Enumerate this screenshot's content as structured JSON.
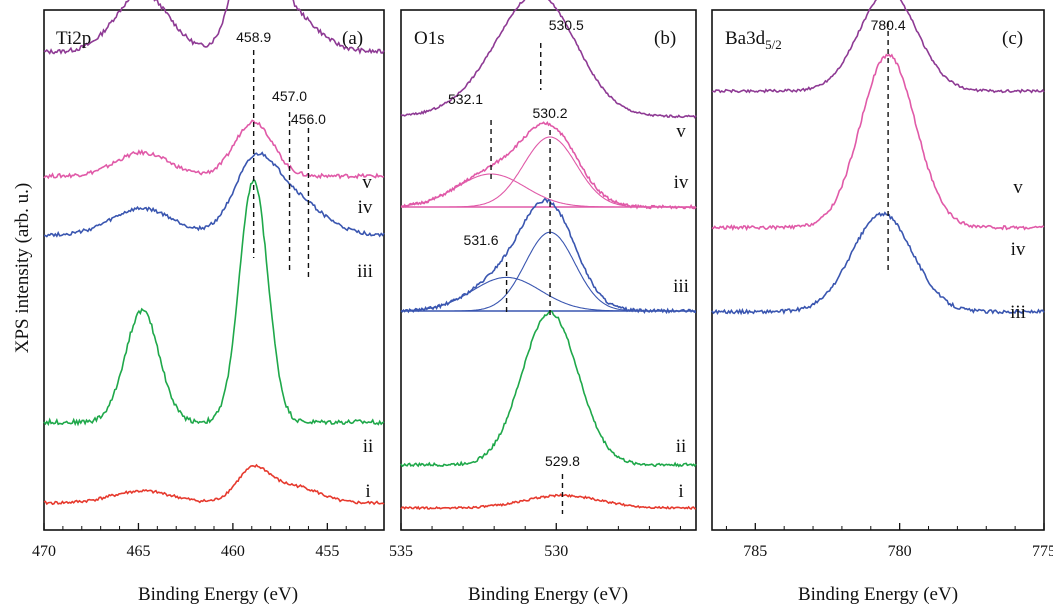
{
  "figure": {
    "y_axis_label": "XPS intensity (arb. u.)"
  },
  "chart_data": [
    {
      "type": "line",
      "panel_letter": "(a)",
      "element_label": "Ti2p",
      "xlabel": "Binding Energy (eV)",
      "xlim": [
        470,
        452
      ],
      "x_ticks": [
        470,
        465,
        460,
        455
      ],
      "peak_markers": [
        {
          "x": 458.9,
          "label": "458.9"
        },
        {
          "x": 457.0,
          "label": "457.0"
        },
        {
          "x": 456.0,
          "label": "456.0"
        }
      ],
      "series": [
        {
          "name": "v",
          "color": "#8e3a94",
          "baseline": 0.88,
          "peaks": [
            [
              464.8,
              0.42,
              1.4
            ],
            [
              458.9,
              1.0,
              0.9
            ],
            [
              457.2,
              0.3,
              1.5
            ]
          ]
        },
        {
          "name": "iv",
          "color": "#e05aa8",
          "baseline": 0.3,
          "peaks": [
            [
              464.8,
              0.18,
              1.4
            ],
            [
              458.9,
              0.42,
              1.0
            ]
          ]
        },
        {
          "name": "iii",
          "color": "#3a56b0",
          "baseline": 0.25,
          "peaks": [
            [
              464.8,
              0.22,
              1.6
            ],
            [
              458.9,
              0.5,
              1.1
            ],
            [
              457.0,
              0.32,
              1.6
            ]
          ]
        },
        {
          "name": "ii",
          "color": "#1fa84a",
          "baseline": 0.18,
          "peaks": [
            [
              464.8,
              0.72,
              0.9
            ],
            [
              458.9,
              1.56,
              0.75
            ]
          ]
        },
        {
          "name": "i",
          "color": "#e63a2e",
          "baseline": 0.02,
          "peaks": [
            [
              464.8,
              0.12,
              1.6
            ],
            [
              458.9,
              0.34,
              0.9
            ],
            [
              456.6,
              0.16,
              1.2
            ]
          ]
        }
      ]
    },
    {
      "type": "line",
      "panel_letter": "(b)",
      "element_label": "O1s",
      "xlabel": "Binding Energy (eV)",
      "xlim": [
        535,
        525.5
      ],
      "x_ticks": [
        535,
        530
      ],
      "peak_markers": [
        {
          "x": 530.5,
          "label": "530.5"
        },
        {
          "x": 532.1,
          "label": "532.1"
        },
        {
          "x": 530.2,
          "label": "530.2"
        },
        {
          "x": 531.6,
          "label": "531.6"
        },
        {
          "x": 529.8,
          "label": "529.8"
        }
      ],
      "series": [
        {
          "name": "v",
          "color": "#8e3a94",
          "baseline": 0.55,
          "peaks": [
            [
              530.5,
              1.6,
              1.2
            ],
            [
              532.0,
              0.3,
              1.2
            ]
          ]
        },
        {
          "name": "iv",
          "color": "#e05aa8",
          "baseline": 0.0,
          "peaks": [
            [
              530.2,
              0.75,
              0.9
            ],
            [
              532.1,
              0.33,
              1.1
            ]
          ],
          "fit_components": [
            [
              530.2,
              0.7,
              0.85
            ],
            [
              532.1,
              0.33,
              1.1
            ]
          ]
        },
        {
          "name": "iii",
          "color": "#3a56b0",
          "baseline": 0.0,
          "peaks": [
            [
              530.2,
              0.9,
              0.85
            ],
            [
              531.6,
              0.32,
              1.1
            ]
          ],
          "fit_components": [
            [
              530.2,
              0.75,
              0.8
            ],
            [
              531.6,
              0.32,
              1.1
            ]
          ]
        },
        {
          "name": "ii",
          "color": "#1fa84a",
          "baseline": 0.05,
          "peaks": [
            [
              530.2,
              1.45,
              0.9
            ]
          ]
        },
        {
          "name": "i",
          "color": "#e63a2e",
          "baseline": 0.0,
          "peaks": [
            [
              529.8,
              0.18,
              1.2
            ]
          ]
        }
      ]
    },
    {
      "type": "line",
      "panel_letter": "(c)",
      "element_label": "Ba3d",
      "element_subscript": "5/2",
      "xlabel": "Binding Energy (eV)",
      "xlim": [
        786.5,
        775
      ],
      "x_ticks": [
        785,
        780,
        775
      ],
      "peak_markers": [
        {
          "x": 780.4,
          "label": "780.4"
        }
      ],
      "series": [
        {
          "name": "v",
          "color": "#8e3a94",
          "baseline": 0.9,
          "peaks": [
            [
              780.4,
              1.1,
              1.0
            ]
          ]
        },
        {
          "name": "iv",
          "color": "#e05aa8",
          "baseline": 0.3,
          "peaks": [
            [
              780.4,
              1.5,
              0.95
            ]
          ]
        },
        {
          "name": "iii",
          "color": "#3a56b0",
          "baseline": 0.02,
          "peaks": [
            [
              780.6,
              0.85,
              1.05
            ]
          ]
        }
      ]
    }
  ]
}
